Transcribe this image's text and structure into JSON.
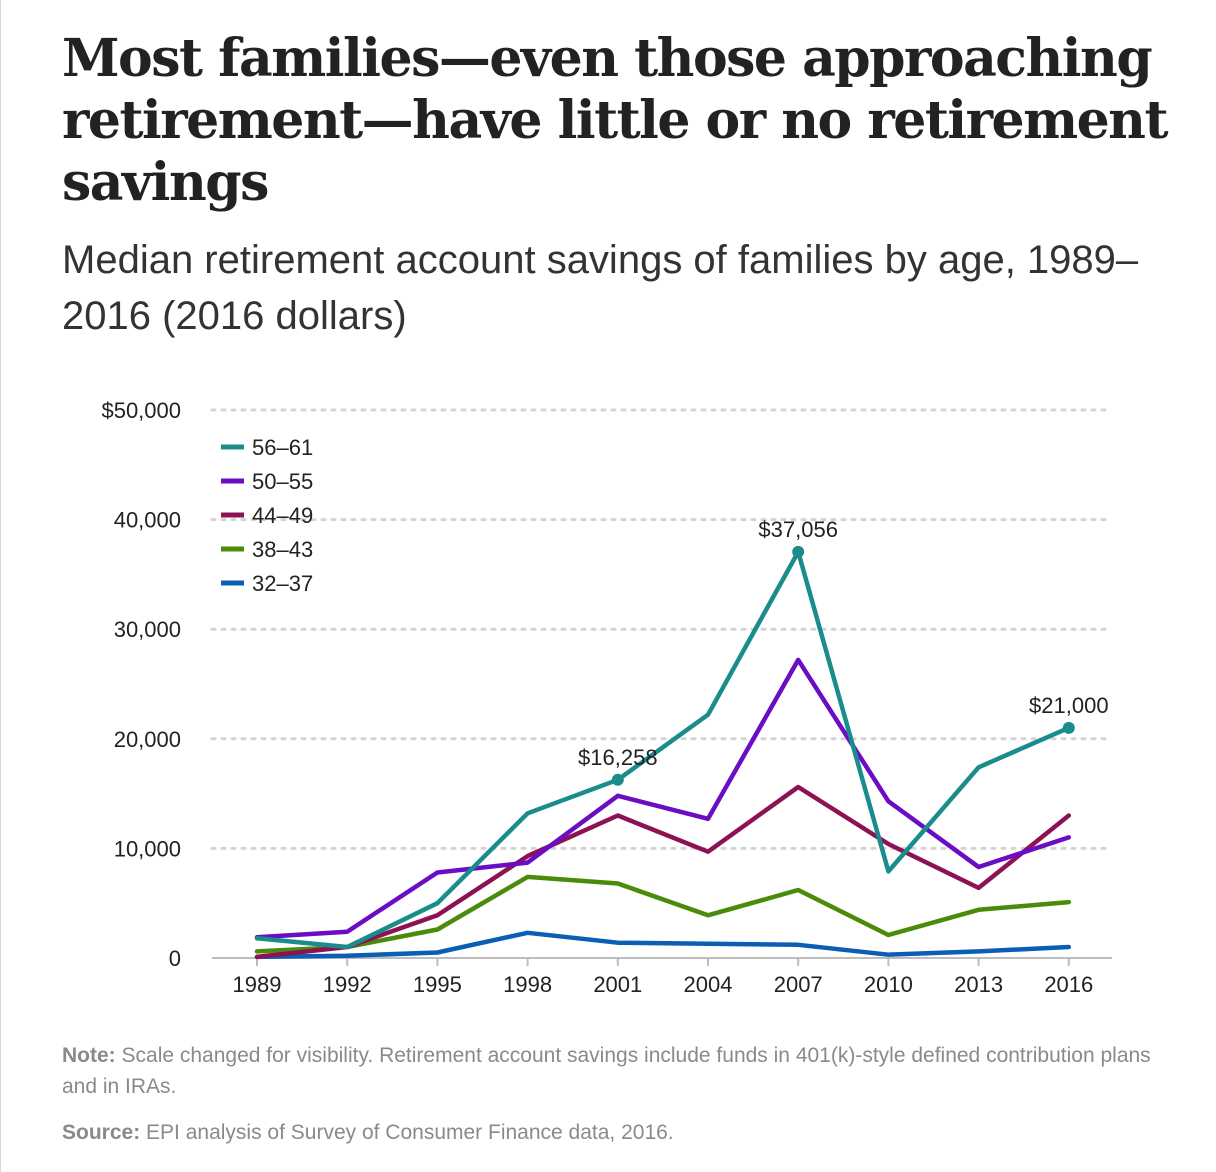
{
  "header": {
    "title": "Most families—even those approaching retirement—have little or no retirement savings",
    "subtitle": "Median retirement account savings of families by age, 1989–2016 (2016 dollars)"
  },
  "footer": {
    "note_label": "Note:",
    "note_text": "Scale changed for visibility. Retirement account savings include funds in 401(k)-style defined contribution plans and in IRAs.",
    "source_label": "Source:",
    "source_text": "EPI analysis of Survey of Consumer Finance data, 2016."
  },
  "chart_data": {
    "type": "line",
    "title": "",
    "xlabel": "",
    "ylabel": "",
    "x": [
      "1989",
      "1992",
      "1995",
      "1998",
      "2001",
      "2004",
      "2007",
      "2010",
      "2013",
      "2016"
    ],
    "ylim": [
      0,
      50000
    ],
    "yticks": [
      0,
      10000,
      20000,
      30000,
      40000,
      50000
    ],
    "ytick_labels": [
      "0",
      "10,000",
      "20,000",
      "30,000",
      "40,000",
      "$50,000"
    ],
    "grid": true,
    "legend_position": "top-left",
    "series": [
      {
        "name": "56–61",
        "color": "#1a8c8c",
        "values": [
          1800,
          1000,
          5000,
          13200,
          16258,
          22200,
          37056,
          7900,
          17400,
          21000
        ]
      },
      {
        "name": "50–55",
        "color": "#6a0dc4",
        "values": [
          1900,
          2400,
          7800,
          8700,
          14800,
          12700,
          27200,
          14300,
          8300,
          11000
        ]
      },
      {
        "name": "44–49",
        "color": "#8c1253",
        "values": [
          100,
          1000,
          3900,
          9300,
          13000,
          9700,
          15600,
          10400,
          6400,
          13000
        ]
      },
      {
        "name": "38–43",
        "color": "#4a8c0a",
        "values": [
          600,
          1000,
          2600,
          7400,
          6800,
          3900,
          6200,
          2100,
          4400,
          5100
        ]
      },
      {
        "name": "32–37",
        "color": "#0a5eb4",
        "values": [
          100,
          200,
          500,
          2300,
          1400,
          1300,
          1200,
          300,
          600,
          1000
        ]
      }
    ],
    "annotations": [
      {
        "series": "56–61",
        "x": "2001",
        "label": "$16,258"
      },
      {
        "series": "56–61",
        "x": "2007",
        "label": "$37,056"
      },
      {
        "series": "56–61",
        "x": "2016",
        "label": "$21,000"
      }
    ]
  }
}
